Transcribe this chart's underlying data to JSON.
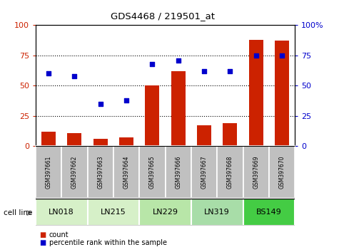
{
  "title": "GDS4468 / 219501_at",
  "samples": [
    "GSM397661",
    "GSM397662",
    "GSM397663",
    "GSM397664",
    "GSM397665",
    "GSM397666",
    "GSM397667",
    "GSM397668",
    "GSM397669",
    "GSM397670"
  ],
  "counts": [
    12,
    11,
    6,
    7,
    50,
    62,
    17,
    19,
    88,
    87
  ],
  "percentiles": [
    60,
    58,
    35,
    38,
    68,
    71,
    62,
    62,
    75,
    75
  ],
  "cell_lines": [
    {
      "label": "LN018",
      "start": 0,
      "end": 2
    },
    {
      "label": "LN215",
      "start": 2,
      "end": 4
    },
    {
      "label": "LN229",
      "start": 4,
      "end": 6
    },
    {
      "label": "LN319",
      "start": 6,
      "end": 8
    },
    {
      "label": "BS149",
      "start": 8,
      "end": 10
    }
  ],
  "cell_line_colors": [
    "#d6f0c8",
    "#d6f0c8",
    "#b8e6a8",
    "#a8dda8",
    "#44cc44"
  ],
  "bar_color": "#cc2200",
  "scatter_color": "#0000cc",
  "ylim": [
    0,
    100
  ],
  "yticks": [
    0,
    25,
    50,
    75,
    100
  ],
  "label_area_color": "#c0c0c0",
  "cell_line_label": "cell line"
}
